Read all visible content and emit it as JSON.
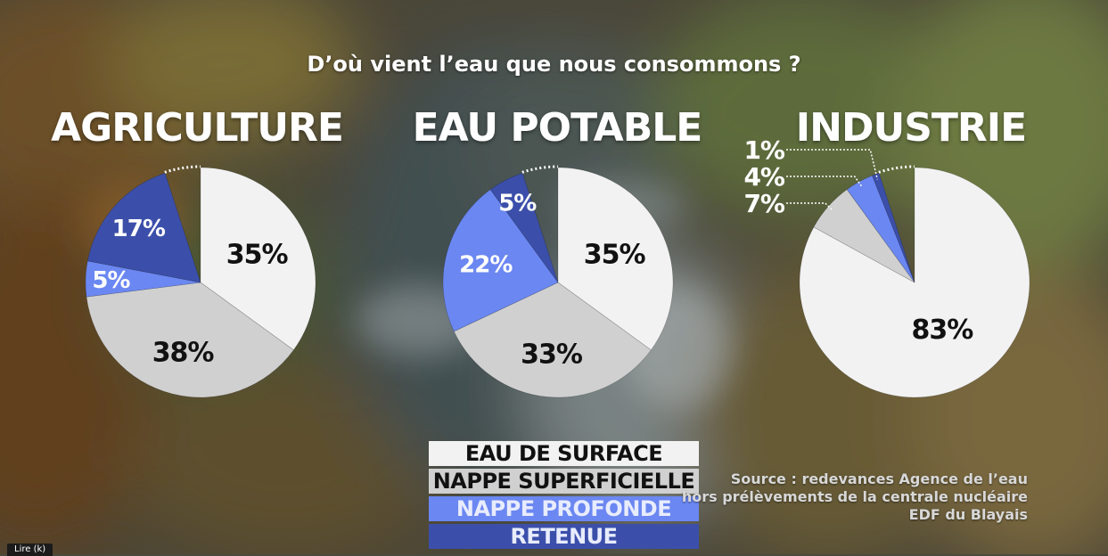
{
  "title": "D’où vient l’eau que nous consommons ?",
  "legend": [
    {
      "label": "EAU DE SURFACE",
      "color": "#f2f2f2",
      "text_color": "#111111"
    },
    {
      "label": "NAPPE SUPERFICIELLE",
      "color": "#d0d0d0",
      "text_color": "#111111"
    },
    {
      "label": "NAPPE PROFONDE",
      "color": "#6b87f2",
      "text_color": "#e8ecff"
    },
    {
      "label": "RETENUE",
      "color": "#3b4faa",
      "text_color": "#e8ecff"
    }
  ],
  "source": [
    "Source : redevances Agence de l’eau",
    "hors prélèvements de la centrale nucléaire",
    "EDF du Blayais"
  ],
  "corner_tag": "Lire (k)",
  "chart_data": [
    {
      "type": "pie",
      "title": "AGRICULTURE",
      "categories": [
        "EAU DE SURFACE",
        "NAPPE SUPERFICIELLE",
        "NAPPE PROFONDE",
        "RETENUE"
      ],
      "values": [
        35,
        38,
        5,
        17
      ],
      "labels": [
        "35%",
        "38%",
        "5%",
        "17%"
      ]
    },
    {
      "type": "pie",
      "title": "EAU POTABLE",
      "categories": [
        "EAU DE SURFACE",
        "NAPPE SUPERFICIELLE",
        "NAPPE PROFONDE",
        "RETENUE"
      ],
      "values": [
        35,
        33,
        22,
        5
      ],
      "labels": [
        "35%",
        "33%",
        "22%",
        "5%"
      ]
    },
    {
      "type": "pie",
      "title": "INDUSTRIE",
      "categories": [
        "EAU DE SURFACE",
        "NAPPE SUPERFICIELLE",
        "NAPPE PROFONDE",
        "RETENUE"
      ],
      "values": [
        83,
        7,
        4,
        1
      ],
      "labels": [
        "83%",
        "7%",
        "4%",
        "1%"
      ]
    }
  ]
}
